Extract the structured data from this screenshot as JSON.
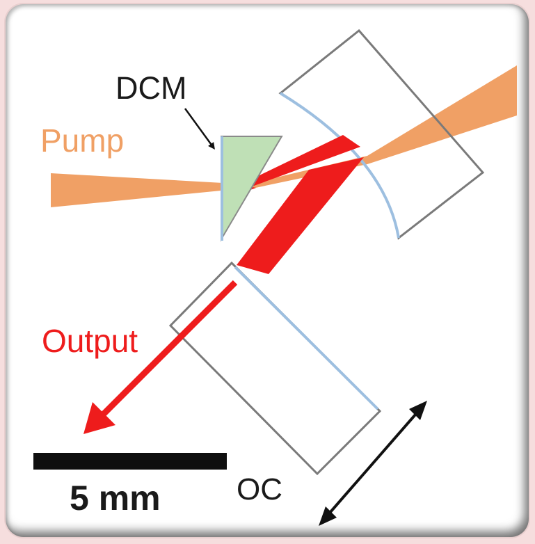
{
  "labels": {
    "dcm": "DCM",
    "pump": "Pump",
    "output": "Output",
    "oc": "OC",
    "scale": "5 mm"
  },
  "colors": {
    "pump": "#f0a065",
    "laser": "#ee1c1c",
    "prism_fill": "#bfe0b6",
    "mirror_coating": "#9dbfe0",
    "outline": "#7a7a7a",
    "text_dark": "#1a1a1a"
  }
}
